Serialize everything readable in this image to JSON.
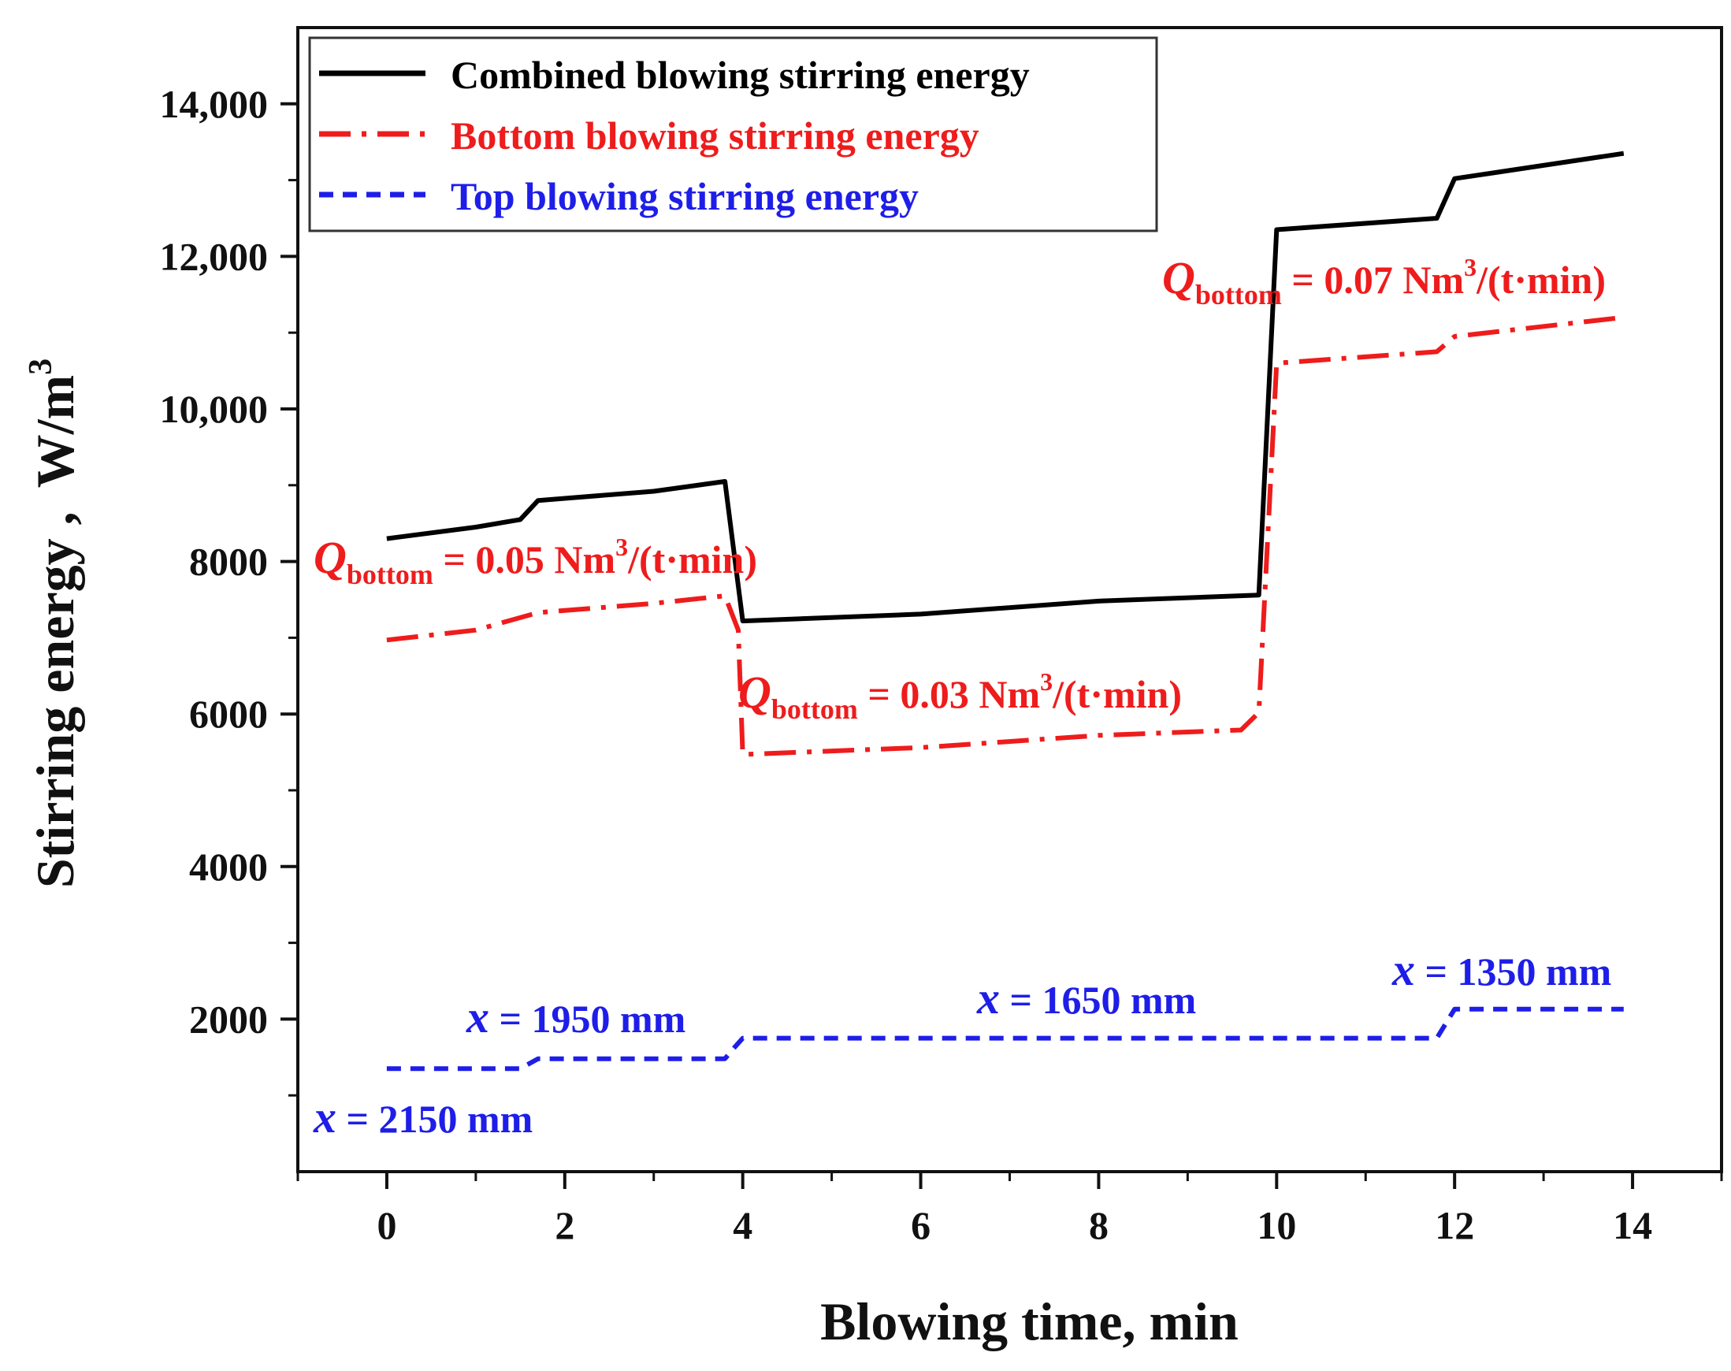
{
  "chart_data": {
    "type": "line",
    "xlabel": "Blowing time, min",
    "ylabel_text": "Stirring energy ,",
    "ylabel_unit": "W/m",
    "ylabel_unit_sup": "3",
    "xlim": [
      -1,
      15
    ],
    "ylim": [
      0,
      15000
    ],
    "x_ticks": [
      0,
      2,
      4,
      6,
      8,
      10,
      12,
      14
    ],
    "x_tick_labels": [
      "0",
      "2",
      "4",
      "6",
      "8",
      "10",
      "12",
      "14"
    ],
    "y_ticks": [
      2000,
      4000,
      6000,
      8000,
      10000,
      12000,
      14000
    ],
    "y_tick_labels": [
      "2000",
      "4000",
      "6000",
      "8000",
      "10,000",
      "12,000",
      "14,000"
    ],
    "grid": false,
    "legend_position": "top-left",
    "series": [
      {
        "name": "Combined blowing stirring energy",
        "color": "#000000",
        "style": "solid",
        "x": [
          0,
          1,
          1.5,
          1.7,
          3,
          3.8,
          4.0,
          6,
          8,
          9.8,
          10.0,
          11.8,
          12.0,
          13.9
        ],
        "y": [
          8300,
          8450,
          8550,
          8800,
          8920,
          9050,
          7220,
          7310,
          7480,
          7560,
          12350,
          12500,
          13020,
          13350
        ]
      },
      {
        "name": "Bottom blowing stirring energy",
        "color": "#ee1c1c",
        "style": "dashdot",
        "x": [
          0,
          1,
          1.7,
          3,
          3.8,
          3.95,
          4.0,
          6,
          8,
          9.6,
          9.8,
          10.0,
          11.8,
          12.0,
          13.9
        ],
        "y": [
          6970,
          7100,
          7330,
          7450,
          7550,
          7100,
          5470,
          5560,
          5720,
          5790,
          6020,
          10600,
          10750,
          10950,
          11200
        ]
      },
      {
        "name": "Top blowing stirring energy",
        "color": "#1e1ee8",
        "style": "dash",
        "x": [
          0,
          1.5,
          1.7,
          3.8,
          3.9,
          4.0,
          11.8,
          12.0,
          13.9
        ],
        "y": [
          1350,
          1350,
          1480,
          1480,
          1620,
          1750,
          1750,
          2130,
          2130
        ]
      }
    ],
    "annotations": [
      {
        "id": "q005",
        "color": "#ee1c1c",
        "prefix": "Q",
        "sub": "bottom",
        "text": " = 0.05 Nm",
        "sup": "3",
        "suffix": "/(t·min)"
      },
      {
        "id": "q003",
        "color": "#ee1c1c",
        "prefix": "Q",
        "sub": "bottom",
        "text": " = 0.03 Nm",
        "sup": "3",
        "suffix": "/(t·min)"
      },
      {
        "id": "q007",
        "color": "#ee1c1c",
        "prefix": "Q",
        "sub": "bottom",
        "text": " = 0.07 Nm",
        "sup": "3",
        "suffix": "/(t·min)"
      },
      {
        "id": "x2150",
        "color": "#1e1ee8",
        "prefix": "x",
        "text": " = 2150 mm"
      },
      {
        "id": "x1950",
        "color": "#1e1ee8",
        "prefix": "x",
        "text": " = 1950 mm"
      },
      {
        "id": "x1650",
        "color": "#1e1ee8",
        "prefix": "x",
        "text": " = 1650 mm"
      },
      {
        "id": "x1350",
        "color": "#1e1ee8",
        "prefix": "x",
        "text": " = 1350 mm"
      }
    ]
  }
}
